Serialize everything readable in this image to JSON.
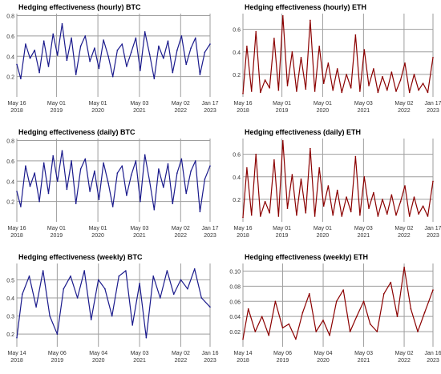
{
  "chart_data": [
    {
      "type": "line",
      "title": "Hedging effectiveness (hourly) BTC",
      "color": "#1a1a8c",
      "xlim": [
        "2018-05-16",
        "2023-01-17"
      ],
      "ylim": [
        0.0,
        0.82
      ],
      "y_ticks": [
        0.2,
        0.4,
        0.6,
        0.8
      ],
      "x_ticks": [
        {
          "date": "2018-05-16",
          "line1": "May 16",
          "line2": "2018"
        },
        {
          "date": "2019-05-01",
          "line1": "May 01",
          "line2": "2019"
        },
        {
          "date": "2020-05-01",
          "line1": "May 01",
          "line2": "2020"
        },
        {
          "date": "2021-05-03",
          "line1": "May 03",
          "line2": "2021"
        },
        {
          "date": "2022-05-02",
          "line1": "May 02",
          "line2": "2022"
        },
        {
          "date": "2023-01-17",
          "line1": "Jan 17",
          "line2": "2023"
        }
      ],
      "series": [
        {
          "x": [
            "2018-05-16",
            "2018-06-20",
            "2018-08-01",
            "2018-09-10",
            "2018-10-20",
            "2018-12-01",
            "2019-01-10",
            "2019-02-20",
            "2019-04-01",
            "2019-05-10",
            "2019-06-20",
            "2019-08-01",
            "2019-09-10",
            "2019-10-20",
            "2019-12-01",
            "2020-01-10",
            "2020-02-20",
            "2020-04-01",
            "2020-05-10",
            "2020-06-20",
            "2020-08-01",
            "2020-09-10",
            "2020-10-20",
            "2020-12-01",
            "2021-01-10",
            "2021-02-20",
            "2021-04-01",
            "2021-05-10",
            "2021-06-20",
            "2021-08-01",
            "2021-09-10",
            "2021-10-20",
            "2021-12-01",
            "2022-01-10",
            "2022-02-20",
            "2022-04-01",
            "2022-05-10",
            "2022-06-20",
            "2022-08-01",
            "2022-09-10",
            "2022-10-20",
            "2022-12-01",
            "2023-01-17"
          ],
          "values": [
            0.32,
            0.18,
            0.52,
            0.38,
            0.46,
            0.24,
            0.55,
            0.3,
            0.62,
            0.41,
            0.72,
            0.36,
            0.58,
            0.22,
            0.5,
            0.6,
            0.35,
            0.48,
            0.28,
            0.56,
            0.4,
            0.2,
            0.46,
            0.52,
            0.3,
            0.44,
            0.58,
            0.26,
            0.64,
            0.42,
            0.18,
            0.5,
            0.38,
            0.55,
            0.24,
            0.46,
            0.6,
            0.32,
            0.48,
            0.58,
            0.22,
            0.44,
            0.52
          ]
        }
      ]
    },
    {
      "type": "line",
      "title": "Hedging effectiveness (hourly) ETH",
      "color": "#8b0000",
      "xlim": [
        "2018-05-16",
        "2023-01-17"
      ],
      "ylim": [
        0.0,
        0.74
      ],
      "y_ticks": [
        0.2,
        0.4,
        0.6
      ],
      "x_ticks": [
        {
          "date": "2018-05-16",
          "line1": "May 16",
          "line2": "2018"
        },
        {
          "date": "2019-05-01",
          "line1": "May 01",
          "line2": "2019"
        },
        {
          "date": "2020-05-01",
          "line1": "May 01",
          "line2": "2020"
        },
        {
          "date": "2021-05-03",
          "line1": "May 03",
          "line2": "2021"
        },
        {
          "date": "2022-05-02",
          "line1": "May 02",
          "line2": "2022"
        },
        {
          "date": "2023-01-17",
          "line1": "Jan 17",
          "line2": "2023"
        }
      ],
      "series": [
        {
          "x": [
            "2018-05-16",
            "2018-06-20",
            "2018-08-01",
            "2018-09-10",
            "2018-10-20",
            "2018-12-01",
            "2019-01-10",
            "2019-02-20",
            "2019-04-01",
            "2019-05-10",
            "2019-06-20",
            "2019-08-01",
            "2019-09-10",
            "2019-10-20",
            "2019-12-01",
            "2020-01-10",
            "2020-02-20",
            "2020-04-01",
            "2020-05-10",
            "2020-06-20",
            "2020-08-01",
            "2020-09-10",
            "2020-10-20",
            "2020-12-01",
            "2021-01-10",
            "2021-02-20",
            "2021-04-01",
            "2021-05-10",
            "2021-06-20",
            "2021-08-01",
            "2021-09-10",
            "2021-10-20",
            "2021-12-01",
            "2022-01-10",
            "2022-02-20",
            "2022-04-01",
            "2022-05-10",
            "2022-06-20",
            "2022-08-01",
            "2022-09-10",
            "2022-10-20",
            "2022-12-01",
            "2023-01-17"
          ],
          "values": [
            0.03,
            0.45,
            0.05,
            0.58,
            0.04,
            0.15,
            0.08,
            0.52,
            0.06,
            0.72,
            0.1,
            0.4,
            0.05,
            0.35,
            0.07,
            0.68,
            0.05,
            0.45,
            0.12,
            0.3,
            0.06,
            0.25,
            0.04,
            0.2,
            0.08,
            0.55,
            0.05,
            0.42,
            0.1,
            0.25,
            0.04,
            0.18,
            0.06,
            0.22,
            0.05,
            0.15,
            0.3,
            0.04,
            0.2,
            0.06,
            0.12,
            0.04,
            0.35
          ]
        }
      ]
    },
    {
      "type": "line",
      "title": "Hedging effectiveness (daily) BTC",
      "color": "#1a1a8c",
      "xlim": [
        "2018-05-16",
        "2023-01-17"
      ],
      "ylim": [
        0.0,
        0.82
      ],
      "y_ticks": [
        0.2,
        0.4,
        0.6,
        0.8
      ],
      "x_ticks": [
        {
          "date": "2018-05-16",
          "line1": "May 16",
          "line2": "2018"
        },
        {
          "date": "2019-05-01",
          "line1": "May 01",
          "line2": "2019"
        },
        {
          "date": "2020-05-01",
          "line1": "May 01",
          "line2": "2020"
        },
        {
          "date": "2021-05-03",
          "line1": "May 03",
          "line2": "2021"
        },
        {
          "date": "2022-05-02",
          "line1": "May 02",
          "line2": "2022"
        },
        {
          "date": "2023-01-17",
          "line1": "Jan 17",
          "line2": "2023"
        }
      ],
      "series": [
        {
          "x": [
            "2018-05-16",
            "2018-06-20",
            "2018-08-01",
            "2018-09-10",
            "2018-10-20",
            "2018-12-01",
            "2019-01-10",
            "2019-02-20",
            "2019-04-01",
            "2019-05-10",
            "2019-06-20",
            "2019-08-01",
            "2019-09-10",
            "2019-10-20",
            "2019-12-01",
            "2020-01-10",
            "2020-02-20",
            "2020-04-01",
            "2020-05-10",
            "2020-06-20",
            "2020-08-01",
            "2020-09-10",
            "2020-10-20",
            "2020-12-01",
            "2021-01-10",
            "2021-02-20",
            "2021-04-01",
            "2021-05-10",
            "2021-06-20",
            "2021-08-01",
            "2021-09-10",
            "2021-10-20",
            "2021-12-01",
            "2022-01-10",
            "2022-02-20",
            "2022-04-01",
            "2022-05-10",
            "2022-06-20",
            "2022-08-01",
            "2022-09-10",
            "2022-10-20",
            "2022-12-01",
            "2023-01-17"
          ],
          "values": [
            0.3,
            0.15,
            0.55,
            0.35,
            0.48,
            0.2,
            0.58,
            0.28,
            0.65,
            0.4,
            0.7,
            0.32,
            0.6,
            0.18,
            0.52,
            0.62,
            0.3,
            0.5,
            0.22,
            0.58,
            0.38,
            0.15,
            0.48,
            0.55,
            0.26,
            0.46,
            0.6,
            0.2,
            0.66,
            0.4,
            0.12,
            0.52,
            0.34,
            0.57,
            0.18,
            0.48,
            0.62,
            0.28,
            0.5,
            0.6,
            0.1,
            0.42,
            0.55
          ]
        }
      ]
    },
    {
      "type": "line",
      "title": "Hedging effectiveness (daily) ETH",
      "color": "#8b0000",
      "xlim": [
        "2018-05-16",
        "2023-01-17"
      ],
      "ylim": [
        0.0,
        0.74
      ],
      "y_ticks": [
        0.2,
        0.4,
        0.6
      ],
      "x_ticks": [
        {
          "date": "2018-05-16",
          "line1": "May 16",
          "line2": "2018"
        },
        {
          "date": "2019-05-01",
          "line1": "May 01",
          "line2": "2019"
        },
        {
          "date": "2020-05-01",
          "line1": "May 01",
          "line2": "2020"
        },
        {
          "date": "2021-05-03",
          "line1": "May 03",
          "line2": "2021"
        },
        {
          "date": "2022-05-02",
          "line1": "May 02",
          "line2": "2022"
        },
        {
          "date": "2023-01-17",
          "line1": "Jan 17",
          "line2": "2023"
        }
      ],
      "series": [
        {
          "x": [
            "2018-05-16",
            "2018-06-20",
            "2018-08-01",
            "2018-09-10",
            "2018-10-20",
            "2018-12-01",
            "2019-01-10",
            "2019-02-20",
            "2019-04-01",
            "2019-05-10",
            "2019-06-20",
            "2019-08-01",
            "2019-09-10",
            "2019-10-20",
            "2019-12-01",
            "2020-01-10",
            "2020-02-20",
            "2020-04-01",
            "2020-05-10",
            "2020-06-20",
            "2020-08-01",
            "2020-09-10",
            "2020-10-20",
            "2020-12-01",
            "2021-01-10",
            "2021-02-20",
            "2021-04-01",
            "2021-05-10",
            "2021-06-20",
            "2021-08-01",
            "2021-09-10",
            "2021-10-20",
            "2021-12-01",
            "2022-01-10",
            "2022-02-20",
            "2022-04-01",
            "2022-05-10",
            "2022-06-20",
            "2022-08-01",
            "2022-09-10",
            "2022-10-20",
            "2022-12-01",
            "2023-01-17"
          ],
          "values": [
            0.04,
            0.48,
            0.06,
            0.6,
            0.05,
            0.18,
            0.08,
            0.55,
            0.05,
            0.72,
            0.12,
            0.42,
            0.06,
            0.38,
            0.08,
            0.65,
            0.05,
            0.48,
            0.14,
            0.32,
            0.06,
            0.28,
            0.05,
            0.22,
            0.09,
            0.58,
            0.06,
            0.4,
            0.12,
            0.26,
            0.05,
            0.2,
            0.07,
            0.24,
            0.06,
            0.18,
            0.32,
            0.05,
            0.22,
            0.07,
            0.14,
            0.05,
            0.36
          ]
        }
      ]
    },
    {
      "type": "line",
      "title": "Hedging effectiveness (weekly) BTC",
      "color": "#1a1a8c",
      "xlim": [
        "2018-05-14",
        "2023-01-16"
      ],
      "ylim": [
        0.13,
        0.59
      ],
      "y_ticks": [
        0.2,
        0.3,
        0.4,
        0.5
      ],
      "x_ticks": [
        {
          "date": "2018-05-14",
          "line1": "May 14",
          "line2": "2018"
        },
        {
          "date": "2019-05-06",
          "line1": "May 06",
          "line2": "2019"
        },
        {
          "date": "2020-05-04",
          "line1": "May 04",
          "line2": "2020"
        },
        {
          "date": "2021-05-03",
          "line1": "May 03",
          "line2": "2021"
        },
        {
          "date": "2022-05-02",
          "line1": "May 02",
          "line2": "2022"
        },
        {
          "date": "2023-01-16",
          "line1": "Jan 16",
          "line2": "2023"
        }
      ],
      "series": [
        {
          "x": [
            "2018-05-14",
            "2018-07-01",
            "2018-09-01",
            "2018-11-01",
            "2019-01-01",
            "2019-03-01",
            "2019-05-06",
            "2019-07-01",
            "2019-09-01",
            "2019-11-01",
            "2020-01-01",
            "2020-03-01",
            "2020-05-04",
            "2020-07-01",
            "2020-09-01",
            "2020-11-01",
            "2021-01-01",
            "2021-03-01",
            "2021-05-03",
            "2021-07-01",
            "2021-09-01",
            "2021-11-01",
            "2022-01-01",
            "2022-03-01",
            "2022-05-02",
            "2022-07-01",
            "2022-09-01",
            "2022-11-01",
            "2023-01-16"
          ],
          "values": [
            0.18,
            0.42,
            0.52,
            0.35,
            0.55,
            0.3,
            0.2,
            0.45,
            0.52,
            0.4,
            0.55,
            0.28,
            0.5,
            0.45,
            0.3,
            0.52,
            0.55,
            0.25,
            0.48,
            0.18,
            0.52,
            0.4,
            0.55,
            0.42,
            0.5,
            0.45,
            0.56,
            0.4,
            0.35
          ]
        }
      ]
    },
    {
      "type": "line",
      "title": "Hedging effectiveness (weekly) ETH",
      "color": "#8b0000",
      "xlim": [
        "2018-05-14",
        "2023-01-16"
      ],
      "ylim": [
        0.0,
        0.11
      ],
      "y_ticks": [
        0.02,
        0.04,
        0.06,
        0.08,
        0.1
      ],
      "x_ticks": [
        {
          "date": "2018-05-14",
          "line1": "May 14",
          "line2": "2018"
        },
        {
          "date": "2019-05-06",
          "line1": "May 06",
          "line2": "2019"
        },
        {
          "date": "2020-05-04",
          "line1": "May 04",
          "line2": "2020"
        },
        {
          "date": "2021-05-03",
          "line1": "May 03",
          "line2": "2021"
        },
        {
          "date": "2022-05-02",
          "line1": "May 02",
          "line2": "2022"
        },
        {
          "date": "2023-01-16",
          "line1": "Jan 16",
          "line2": "2023"
        }
      ],
      "series": [
        {
          "x": [
            "2018-05-14",
            "2018-07-01",
            "2018-09-01",
            "2018-11-01",
            "2019-01-01",
            "2019-03-01",
            "2019-05-06",
            "2019-07-01",
            "2019-09-01",
            "2019-11-01",
            "2020-01-01",
            "2020-03-01",
            "2020-05-04",
            "2020-07-01",
            "2020-09-01",
            "2020-11-01",
            "2021-01-01",
            "2021-03-01",
            "2021-05-03",
            "2021-07-01",
            "2021-09-01",
            "2021-11-01",
            "2022-01-01",
            "2022-03-01",
            "2022-05-02",
            "2022-07-01",
            "2022-09-01",
            "2022-11-01",
            "2023-01-16"
          ],
          "values": [
            0.01,
            0.05,
            0.02,
            0.04,
            0.015,
            0.06,
            0.025,
            0.03,
            0.01,
            0.045,
            0.07,
            0.02,
            0.035,
            0.015,
            0.06,
            0.075,
            0.02,
            0.04,
            0.06,
            0.03,
            0.02,
            0.07,
            0.085,
            0.04,
            0.105,
            0.05,
            0.02,
            0.045,
            0.075
          ]
        }
      ]
    }
  ]
}
